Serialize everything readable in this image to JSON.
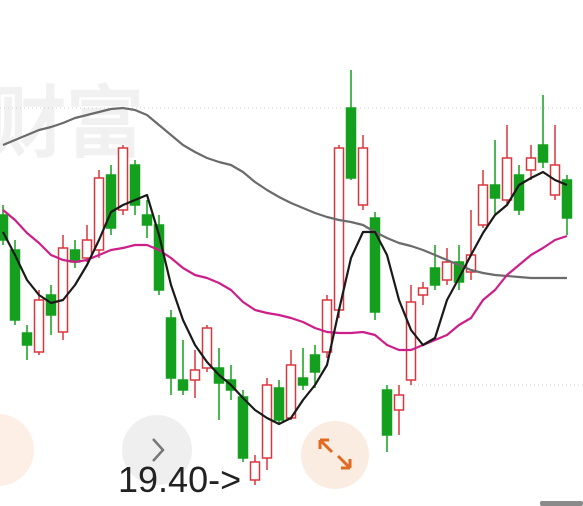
{
  "watermark": "财富",
  "chart_data": {
    "type": "candlestick",
    "annotation": "19.40->",
    "ylim": [
      19.19,
      24.25
    ],
    "up_color": "#d9363e",
    "down_color": "#14a01e",
    "open": [
      22.1,
      21.75,
      20.92,
      20.73,
      21.3,
      20.93,
      21.75,
      21.67,
      21.75,
      22.5,
      22.15,
      22.6,
      22.1,
      22.0,
      21.07,
      20.45,
      20.45,
      20.57,
      20.57,
      20.45,
      20.28,
      19.45,
      19.67,
      20.37,
      20.07,
      20.47,
      20.7,
      20.73,
      21.15,
      23.17,
      22.2,
      22.07,
      20.35,
      20.15,
      20.45,
      21.3,
      21.57,
      21.45,
      21.63,
      21.53,
      22.0,
      22.4,
      22.25,
      22.5,
      22.55,
      22.8,
      22.3,
      22.45
    ],
    "high": [
      22.2,
      21.85,
      21.0,
      21.35,
      21.4,
      21.9,
      21.85,
      22.0,
      22.55,
      22.6,
      22.8,
      22.65,
      22.25,
      22.1,
      21.15,
      20.85,
      20.75,
      21.0,
      20.77,
      20.6,
      20.35,
      19.7,
      20.47,
      20.45,
      20.75,
      20.77,
      20.8,
      21.3,
      22.8,
      23.55,
      22.9,
      22.13,
      20.4,
      20.4,
      21.4,
      21.43,
      21.8,
      21.77,
      21.8,
      22.15,
      22.55,
      22.85,
      23.0,
      22.6,
      22.8,
      23.3,
      23.0,
      22.5
    ],
    "low": [
      21.8,
      21.0,
      20.65,
      20.7,
      20.9,
      20.85,
      21.57,
      21.63,
      21.67,
      21.9,
      22.1,
      22.1,
      21.87,
      21.3,
      20.3,
      20.3,
      20.27,
      20.53,
      20.05,
      20.25,
      19.63,
      19.4,
      19.55,
      20.0,
      20.05,
      20.35,
      20.37,
      20.67,
      21.07,
      22.45,
      22.15,
      21.05,
      19.73,
      19.9,
      20.4,
      21.2,
      21.35,
      21.4,
      21.35,
      21.45,
      21.97,
      22.1,
      22.2,
      22.1,
      22.45,
      22.57,
      22.25,
      21.9
    ],
    "close": [
      21.85,
      21.05,
      20.8,
      21.25,
      21.1,
      21.77,
      21.63,
      21.85,
      22.47,
      21.97,
      22.77,
      22.2,
      22.0,
      21.35,
      20.47,
      20.35,
      20.55,
      20.97,
      20.42,
      20.35,
      19.67,
      19.63,
      20.4,
      20.05,
      20.6,
      20.4,
      20.53,
      21.25,
      22.77,
      22.47,
      22.77,
      21.13,
      19.9,
      20.3,
      21.23,
      21.37,
      21.4,
      21.63,
      21.43,
      21.7,
      22.4,
      22.27,
      22.67,
      22.15,
      22.67,
      22.63,
      22.6,
      22.07
    ],
    "series": [
      {
        "color": "#6b6b6b",
        "values": [
          22.8,
          22.85,
          22.9,
          22.95,
          22.98,
          23.02,
          23.07,
          23.1,
          23.13,
          23.16,
          23.17,
          23.15,
          23.1,
          23.0,
          22.9,
          22.8,
          22.73,
          22.67,
          22.63,
          22.6,
          22.53,
          22.43,
          22.35,
          22.28,
          22.22,
          22.17,
          22.12,
          22.08,
          22.05,
          22.03,
          22.0,
          21.93,
          21.87,
          21.82,
          21.79,
          21.75,
          21.7,
          21.65,
          21.6,
          21.55,
          21.52,
          21.5,
          21.49,
          21.48,
          21.47,
          21.47,
          21.47,
          21.47
        ]
      },
      {
        "color": "#cc1f8a",
        "values": [
          22.15,
          22.05,
          21.92,
          21.82,
          21.7,
          21.65,
          21.63,
          21.65,
          21.7,
          21.75,
          21.77,
          21.8,
          21.8,
          21.75,
          21.67,
          21.57,
          21.5,
          21.47,
          21.42,
          21.35,
          21.23,
          21.15,
          21.12,
          21.1,
          21.07,
          21.03,
          20.97,
          20.93,
          20.92,
          20.92,
          20.93,
          20.9,
          20.8,
          20.75,
          20.75,
          20.8,
          20.85,
          20.9,
          21.0,
          21.07,
          21.25,
          21.35,
          21.5,
          21.6,
          21.7,
          21.77,
          21.85,
          21.89
        ]
      },
      {
        "color": "#1a1a1a",
        "values": [
          21.93,
          21.7,
          21.45,
          21.3,
          21.22,
          21.25,
          21.4,
          21.6,
          21.85,
          22.13,
          22.2,
          22.25,
          22.3,
          21.9,
          21.4,
          21.05,
          20.8,
          20.63,
          20.5,
          20.4,
          20.27,
          20.15,
          20.07,
          20.01,
          20.07,
          20.25,
          20.4,
          20.6,
          21.15,
          21.67,
          21.93,
          21.93,
          21.7,
          21.25,
          20.95,
          20.8,
          20.87,
          21.25,
          21.47,
          21.7,
          21.92,
          22.1,
          22.2,
          22.4,
          22.47,
          22.53,
          22.45,
          22.4
        ]
      }
    ]
  }
}
